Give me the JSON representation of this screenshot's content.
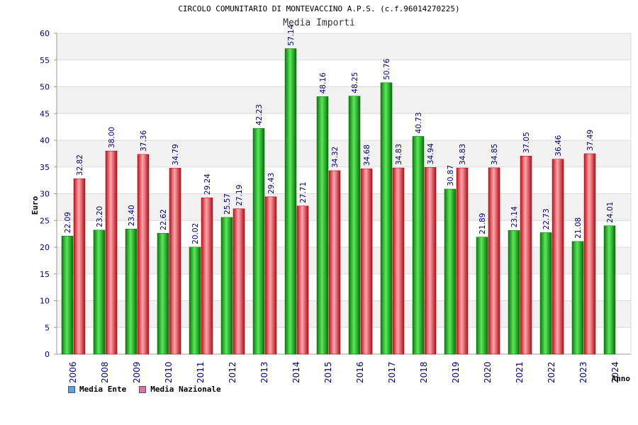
{
  "chart_data": {
    "type": "bar",
    "title": "CIRCOLO COMUNITARIO DI MONTEVACCINO A.P.S. (c.f.96014270225)",
    "subtitle": "Media Importi",
    "ylabel": "Euro",
    "xlabel": "Anno",
    "ylim": [
      0,
      60
    ],
    "yticks": [
      0,
      5,
      10,
      15,
      20,
      25,
      30,
      35,
      40,
      45,
      50,
      55,
      60
    ],
    "categories": [
      "2006",
      "2008",
      "2009",
      "2010",
      "2011",
      "2012",
      "2013",
      "2014",
      "2015",
      "2016",
      "2017",
      "2018",
      "2019",
      "2020",
      "2021",
      "2022",
      "2023",
      "2024"
    ],
    "series": [
      {
        "name": "Media Ente",
        "color": "#22b822",
        "values": [
          22.09,
          23.2,
          23.4,
          22.62,
          20.02,
          25.57,
          42.23,
          57.14,
          48.16,
          48.25,
          50.76,
          40.73,
          30.87,
          21.89,
          23.14,
          22.73,
          21.08,
          24.01
        ],
        "labels": [
          "22.09",
          "23.20",
          "23.40",
          "22.62",
          "20.02",
          "25.57",
          "42.23",
          "57.14",
          "48.16",
          "48.25",
          "50.76",
          "40.73",
          "30.87",
          "21.89",
          "23.14",
          "22.73",
          "21.08",
          "24.01"
        ]
      },
      {
        "name": "Media Nazionale",
        "color": "#e8303a",
        "values": [
          32.82,
          38.0,
          37.36,
          34.79,
          29.24,
          27.19,
          29.43,
          27.71,
          34.32,
          34.68,
          34.83,
          34.94,
          34.83,
          34.85,
          37.05,
          36.46,
          37.49,
          null
        ],
        "labels": [
          "32.82",
          "38.00",
          "37.36",
          "34.79",
          "29.24",
          "27.19",
          "29.43",
          "27.71",
          "34.32",
          "34.68",
          "34.83",
          "34.94",
          "34.83",
          "34.85",
          "37.05",
          "36.46",
          "37.49",
          ""
        ]
      }
    ],
    "legend": [
      {
        "label": "Media Ente",
        "color": "#5aa0e8"
      },
      {
        "label": "Media Nazionale",
        "color": "#e070a8"
      }
    ],
    "grid": true
  }
}
